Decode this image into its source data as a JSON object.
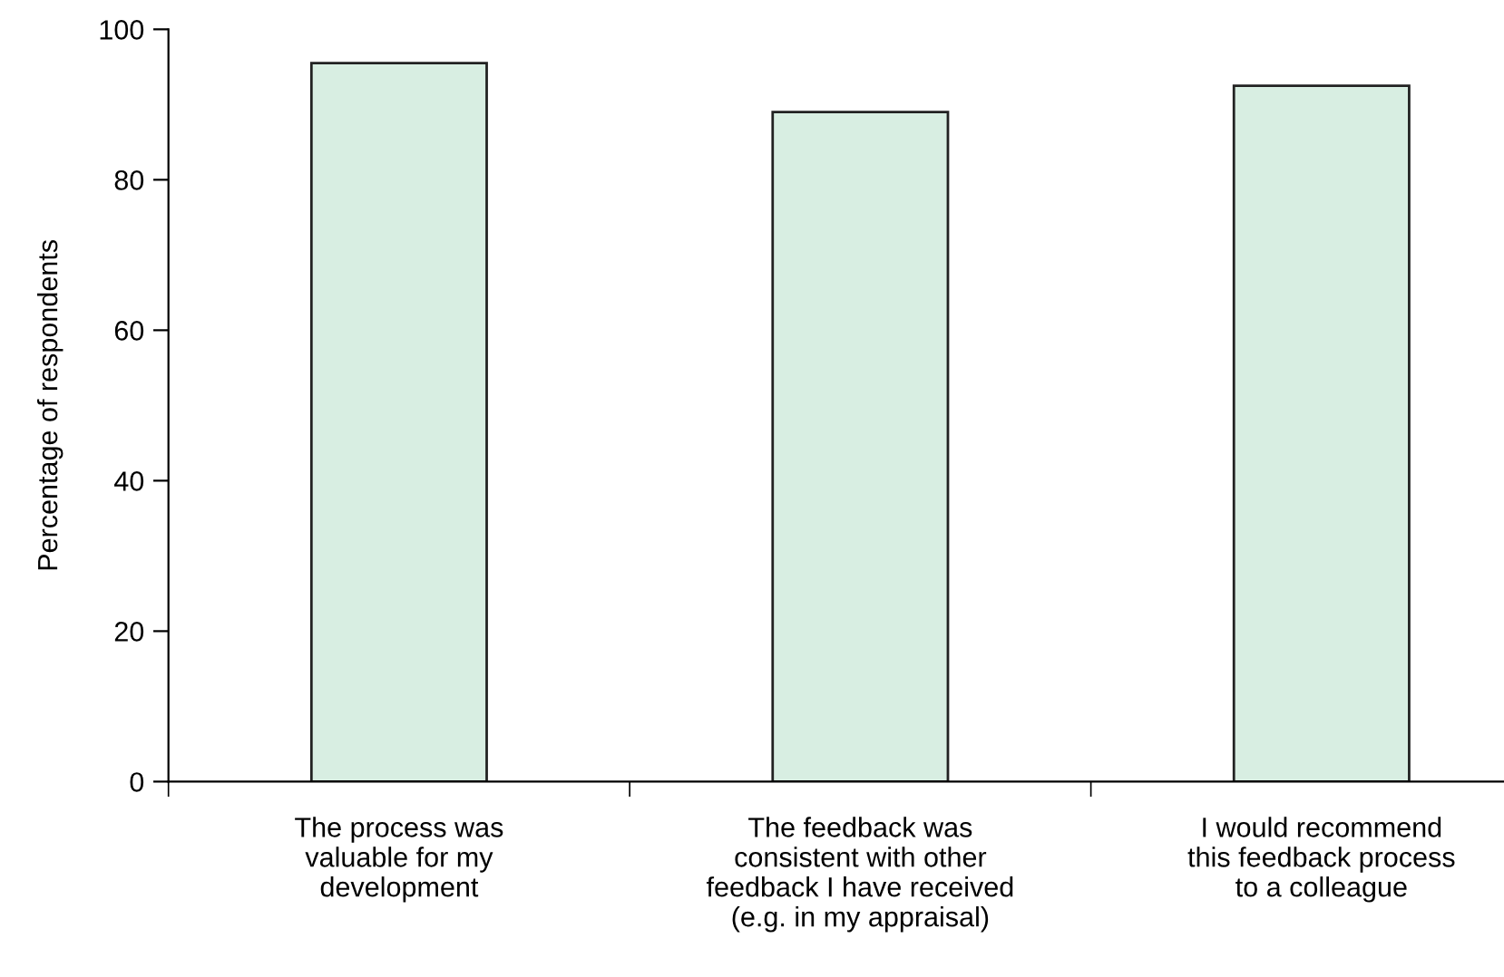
{
  "chart_data": {
    "type": "bar",
    "ylabel": "Percentage of respondents",
    "categories": [
      "The process was\nvaluable for my\ndevelopment",
      "The feedback was\nconsistent with other\nfeedback I have received\n(e.g. in my appraisal)",
      "I would recommend\nthis feedback process\nto a colleague"
    ],
    "values": [
      95.5,
      89,
      92.5
    ],
    "color": "#d8eee2",
    "ylim": [
      0,
      100
    ],
    "yticks": [
      0,
      20,
      40,
      60,
      80,
      100
    ],
    "grid": false
  }
}
